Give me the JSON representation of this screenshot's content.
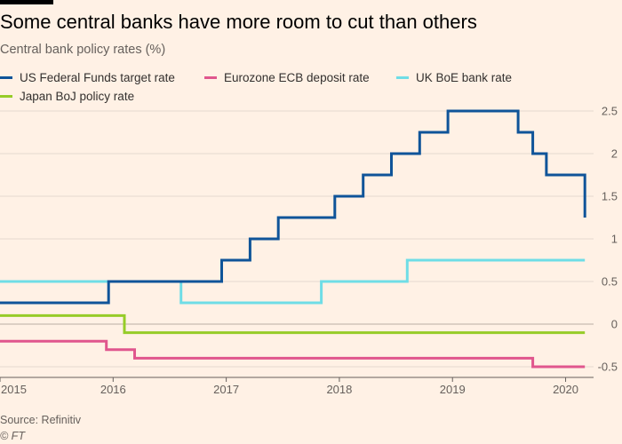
{
  "header": {
    "title": "Some central banks have more room to cut than others",
    "subtitle": "Central bank policy rates (%)"
  },
  "footer": {
    "source": "Source: Refinitiv",
    "copyright": "© FT"
  },
  "chart_data": {
    "type": "line",
    "title": "Some central banks have more room to cut than others",
    "subtitle": "Central bank policy rates (%)",
    "xlabel": "",
    "ylabel": "",
    "xlim": [
      2015.0,
      2020.2
    ],
    "ylim": [
      -0.6,
      2.6
    ],
    "x_ticks": [
      2015,
      2016,
      2017,
      2018,
      2019,
      2020
    ],
    "x_tick_labels": [
      "2015",
      "2016",
      "2017",
      "2018",
      "2019",
      "2020"
    ],
    "y_ticks": [
      -0.5,
      0,
      0.5,
      1,
      1.5,
      2,
      2.5
    ],
    "y_tick_labels": [
      "-0.5",
      "0",
      "0.5",
      "1",
      "1.5",
      "2",
      "2.5"
    ],
    "y_axis_position": "right",
    "grid": true,
    "legend_position": "top",
    "step": true,
    "series": [
      {
        "name": "US Federal Funds target rate",
        "color": "#0f5499",
        "points": [
          [
            2015.0,
            0.25
          ],
          [
            2015.96,
            0.25
          ],
          [
            2015.96,
            0.5
          ],
          [
            2016.96,
            0.5
          ],
          [
            2016.96,
            0.75
          ],
          [
            2017.21,
            0.75
          ],
          [
            2017.21,
            1.0
          ],
          [
            2017.46,
            1.0
          ],
          [
            2017.46,
            1.25
          ],
          [
            2017.96,
            1.25
          ],
          [
            2017.96,
            1.5
          ],
          [
            2018.21,
            1.5
          ],
          [
            2018.21,
            1.75
          ],
          [
            2018.46,
            1.75
          ],
          [
            2018.46,
            2.0
          ],
          [
            2018.71,
            2.0
          ],
          [
            2018.71,
            2.25
          ],
          [
            2018.96,
            2.25
          ],
          [
            2018.96,
            2.5
          ],
          [
            2019.58,
            2.5
          ],
          [
            2019.58,
            2.25
          ],
          [
            2019.71,
            2.25
          ],
          [
            2019.71,
            2.0
          ],
          [
            2019.83,
            2.0
          ],
          [
            2019.83,
            1.75
          ],
          [
            2020.17,
            1.75
          ],
          [
            2020.17,
            1.25
          ]
        ]
      },
      {
        "name": "Eurozone ECB deposit rate",
        "color": "#e0568d",
        "points": [
          [
            2015.0,
            -0.2
          ],
          [
            2015.94,
            -0.2
          ],
          [
            2015.94,
            -0.3
          ],
          [
            2016.19,
            -0.3
          ],
          [
            2016.19,
            -0.4
          ],
          [
            2019.71,
            -0.4
          ],
          [
            2019.71,
            -0.5
          ],
          [
            2020.17,
            -0.5
          ]
        ]
      },
      {
        "name": "UK BoE bank rate",
        "color": "#6fdde6",
        "points": [
          [
            2015.0,
            0.5
          ],
          [
            2016.6,
            0.5
          ],
          [
            2016.6,
            0.25
          ],
          [
            2017.84,
            0.25
          ],
          [
            2017.84,
            0.5
          ],
          [
            2018.6,
            0.5
          ],
          [
            2018.6,
            0.75
          ],
          [
            2020.17,
            0.75
          ]
        ]
      },
      {
        "name": "Japan BoJ policy rate",
        "color": "#96cc28",
        "points": [
          [
            2015.0,
            0.1
          ],
          [
            2016.1,
            0.1
          ],
          [
            2016.1,
            -0.1
          ],
          [
            2020.17,
            -0.1
          ]
        ]
      }
    ]
  }
}
